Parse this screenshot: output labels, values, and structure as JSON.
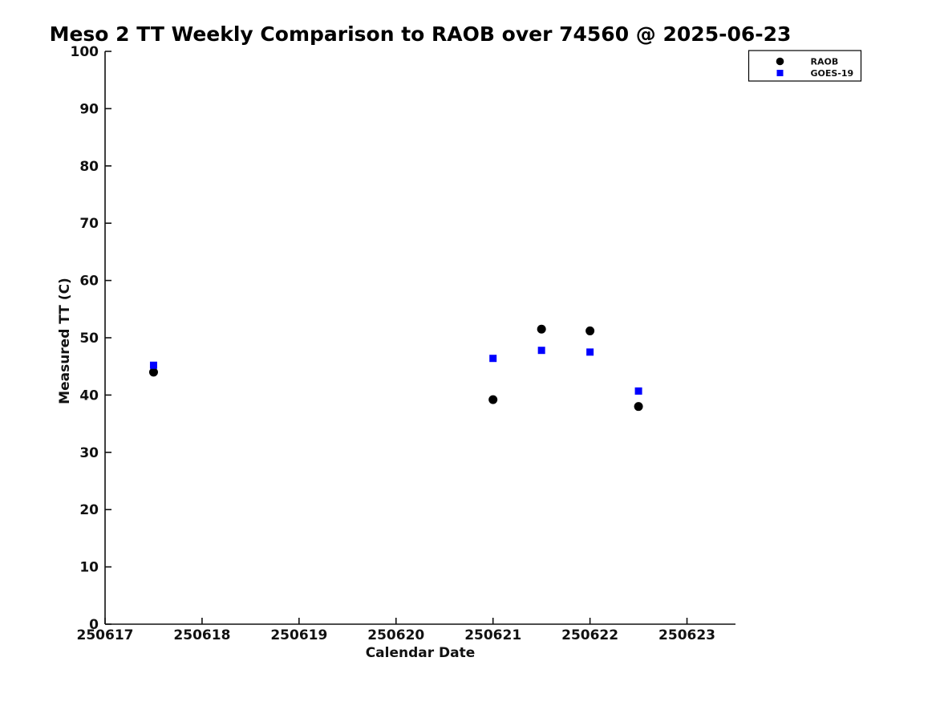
{
  "page": {
    "background": "#ffffff"
  },
  "chart_data": {
    "type": "scatter",
    "title": "Meso 2 TT Weekly Comparison to RAOB over 74560 @ 2025-06-23",
    "xlabel": "Calendar Date",
    "ylabel": "Measured TT (C)",
    "xlim": [
      250617,
      250623.5
    ],
    "ylim": [
      0,
      100
    ],
    "xtick_values": [
      250617,
      250618,
      250619,
      250620,
      250621,
      250622,
      250623
    ],
    "xtick_labels": [
      "250617",
      "250618",
      "250619",
      "250620",
      "250621",
      "250622",
      "250623"
    ],
    "ytick_values": [
      0,
      10,
      20,
      30,
      40,
      50,
      60,
      70,
      80,
      90,
      100
    ],
    "ytick_labels": [
      "0",
      "10",
      "20",
      "30",
      "40",
      "50",
      "60",
      "70",
      "80",
      "90",
      "100"
    ],
    "grid": false,
    "legend_position": "top-right",
    "axis_color": "#111111",
    "series": [
      {
        "name": "RAOB",
        "marker": "circle",
        "color": "#000000",
        "points": [
          [
            250617.5,
            44.0
          ],
          [
            250621.0,
            39.2
          ],
          [
            250621.5,
            51.5
          ],
          [
            250622.0,
            51.2
          ],
          [
            250622.5,
            38.0
          ]
        ]
      },
      {
        "name": "GOES-19",
        "marker": "square",
        "color": "#0000ff",
        "points": [
          [
            250617.5,
            45.2
          ],
          [
            250621.0,
            46.4
          ],
          [
            250621.5,
            47.8
          ],
          [
            250622.0,
            47.5
          ],
          [
            250622.5,
            40.7
          ]
        ]
      }
    ]
  }
}
